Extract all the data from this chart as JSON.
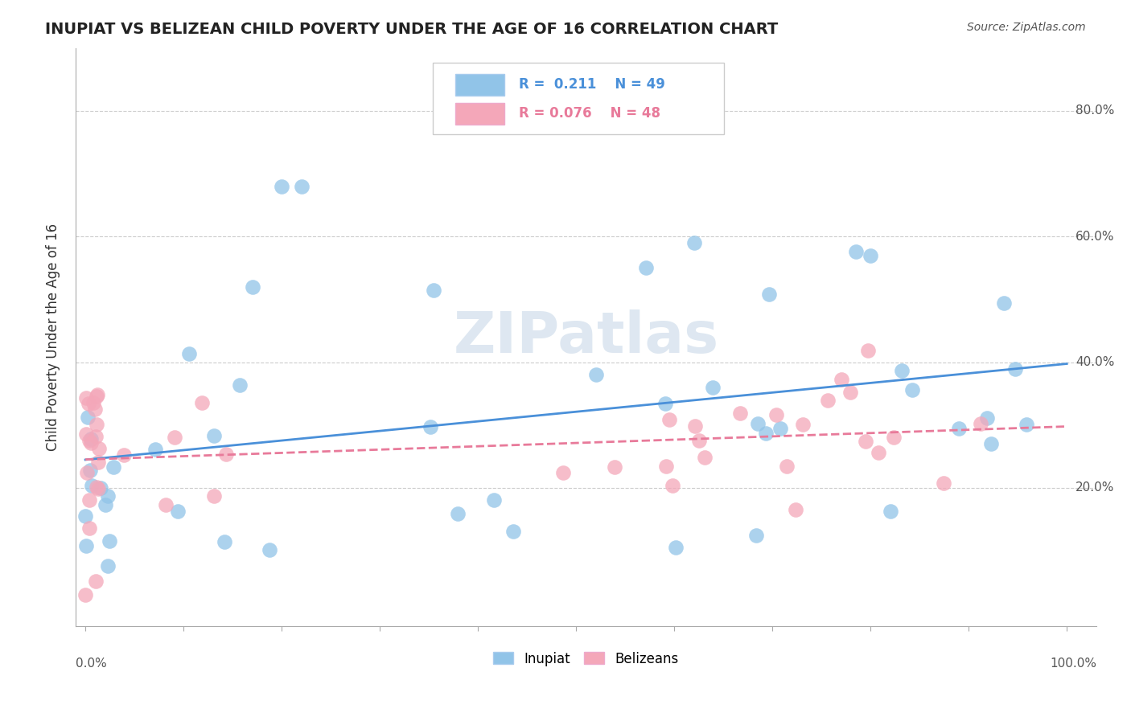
{
  "title": "INUPIAT VS BELIZEAN CHILD POVERTY UNDER THE AGE OF 16 CORRELATION CHART",
  "source": "Source: ZipAtlas.com",
  "ylabel": "Child Poverty Under the Age of 16",
  "legend_labels": [
    "Inupiat",
    "Belizeans"
  ],
  "inupiat_color": "#91c4e8",
  "belizean_color": "#f4a7b9",
  "inupiat_line_color": "#4a90d9",
  "belizean_line_color": "#e87a9a",
  "watermark": "ZIPatlas",
  "watermark_color": "#c8d8e8",
  "right_labels": {
    "0.2": "20.0%",
    "0.4": "40.0%",
    "0.6": "60.0%",
    "0.8": "80.0%"
  },
  "inupiat_r": "R =  0.211",
  "inupiat_n": "N = 49",
  "belizean_r": "R = 0.076",
  "belizean_n": "N = 48"
}
